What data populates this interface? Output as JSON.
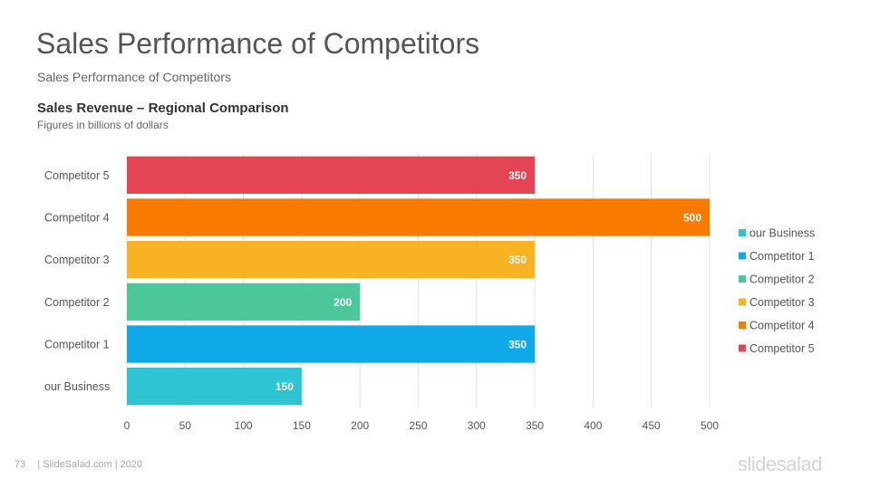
{
  "slide": {
    "title": "Sales Performance of Competitors",
    "subtitle": "Sales Performance of Competitors"
  },
  "chart_data": {
    "type": "bar",
    "orientation": "horizontal",
    "title": "Sales Revenue – Regional Comparison",
    "subtitle": "Figures in billions of dollars",
    "categories": [
      "our Business",
      "Competitor 1",
      "Competitor 2",
      "Competitor 3",
      "Competitor 4",
      "Competitor 5"
    ],
    "values": [
      150,
      350,
      200,
      350,
      500,
      350
    ],
    "colors": [
      "#2ec4d3",
      "#0fa8e8",
      "#4cc79a",
      "#fab225",
      "#f87a00",
      "#e34555"
    ],
    "xlim": [
      0,
      500
    ],
    "xticks": [
      0,
      50,
      100,
      150,
      200,
      250,
      300,
      350,
      400,
      450,
      500
    ],
    "grid": true,
    "data_labels": true,
    "legend": {
      "position": "right",
      "entries": [
        "our Business",
        "Competitor 1",
        "Competitor 2",
        "Competitor 3",
        "Competitor 4",
        "Competitor 5"
      ]
    }
  },
  "footer": {
    "page_number": "73",
    "text": "| SlideSalad.com | 2020",
    "logo": "slidesalad"
  }
}
